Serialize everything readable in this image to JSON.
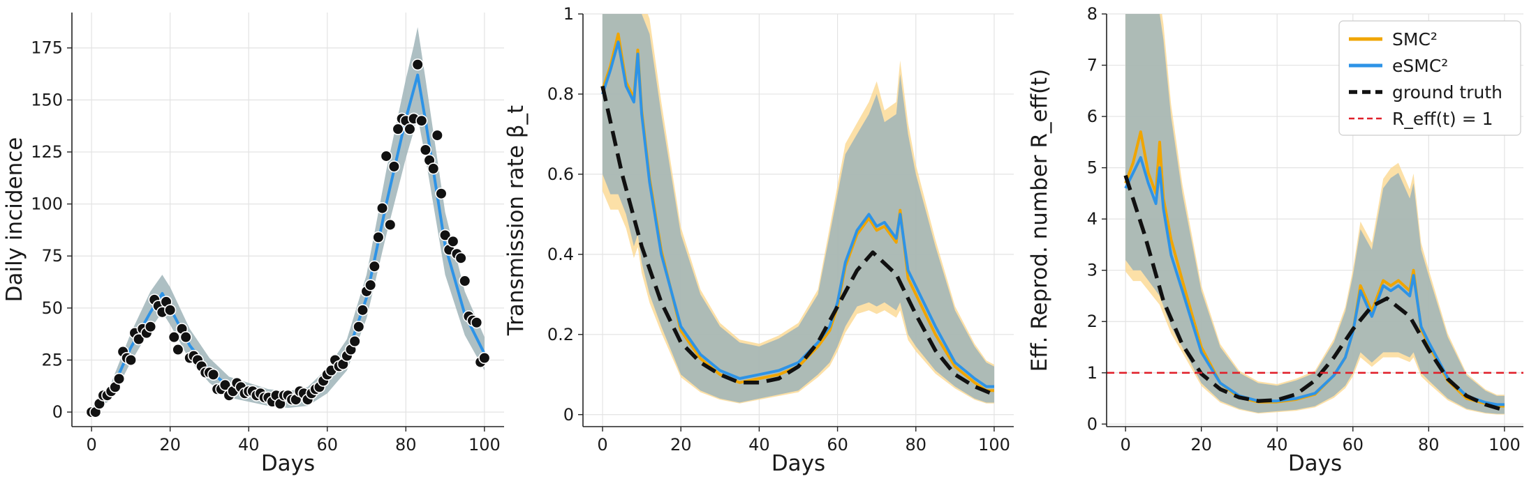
{
  "colors": {
    "smc2": "#f0a500",
    "esmc2": "#2e93e6",
    "smc2_band": "#fbd58a",
    "esmc2_band": "#9fb4b9",
    "ground_truth": "#111111",
    "reff_line": "#e0202a",
    "marker_fill": "#111111",
    "marker_edge": "#ffffff"
  },
  "legend": {
    "smc2": "SMC²",
    "esmc2": "eSMC²",
    "ground_truth": "ground truth",
    "reff_one": "R_eff(t) = 1"
  },
  "chart_data": [
    {
      "type": "line",
      "panel": "incidence",
      "xlabel": "Days",
      "ylabel": "Daily incidence",
      "xlim": [
        -5,
        105
      ],
      "ylim": [
        -7,
        192
      ],
      "xticks": [
        0,
        20,
        40,
        60,
        80,
        100
      ],
      "yticks": [
        0,
        25,
        50,
        75,
        100,
        125,
        150,
        175
      ],
      "grid": true,
      "observed_days": [
        0,
        1,
        2,
        3,
        4,
        5,
        6,
        7,
        8,
        9,
        10,
        11,
        12,
        13,
        14,
        15,
        16,
        17,
        18,
        19,
        20,
        21,
        22,
        23,
        24,
        25,
        26,
        27,
        28,
        29,
        30,
        31,
        32,
        33,
        34,
        35,
        36,
        37,
        38,
        39,
        40,
        41,
        42,
        43,
        44,
        45,
        46,
        47,
        48,
        49,
        50,
        51,
        52,
        53,
        54,
        55,
        56,
        57,
        58,
        59,
        60,
        61,
        62,
        63,
        64,
        65,
        66,
        67,
        68,
        69,
        70,
        71,
        72,
        73,
        74,
        75,
        76,
        77,
        78,
        79,
        80,
        81,
        82,
        83,
        84,
        85,
        86,
        87,
        88,
        89,
        90,
        91,
        92,
        93,
        94,
        95,
        96,
        97,
        98,
        99,
        100
      ],
      "observed_counts": [
        0,
        0,
        4,
        8,
        8,
        10,
        12,
        16,
        29,
        26,
        25,
        38,
        35,
        40,
        38,
        41,
        54,
        51,
        48,
        53,
        49,
        36,
        30,
        40,
        36,
        26,
        27,
        25,
        22,
        19,
        19,
        18,
        11,
        11,
        13,
        8,
        10,
        14,
        12,
        9,
        10,
        10,
        8,
        9,
        7,
        7,
        5,
        8,
        4,
        8,
        8,
        6,
        6,
        10,
        9,
        6,
        9,
        11,
        12,
        15,
        18,
        20,
        25,
        22,
        23,
        27,
        30,
        34,
        41,
        49,
        58,
        61,
        70,
        84,
        98,
        123,
        90,
        118,
        136,
        141,
        140,
        136,
        141,
        167,
        140,
        126,
        121,
        117,
        133,
        105,
        85,
        78,
        82,
        76,
        74,
        63,
        46,
        44,
        43,
        24,
        26
      ],
      "estimate_days": [
        0,
        5,
        10,
        15,
        18,
        20,
        25,
        30,
        35,
        40,
        45,
        50,
        55,
        60,
        65,
        70,
        75,
        80,
        82,
        83,
        85,
        90,
        95,
        100
      ],
      "esmc2_mean": [
        0,
        10,
        31,
        48,
        57,
        50,
        32,
        20,
        12,
        9,
        7,
        6,
        7,
        15,
        27,
        55,
        100,
        141,
        155,
        162,
        140,
        80,
        47,
        28
      ],
      "band_lower": [
        0,
        6,
        24,
        40,
        48,
        42,
        25,
        14,
        7,
        5,
        3,
        2,
        3,
        9,
        20,
        45,
        85,
        122,
        135,
        142,
        122,
        66,
        37,
        20
      ],
      "band_upper": [
        2,
        14,
        38,
        58,
        66,
        60,
        40,
        26,
        17,
        14,
        11,
        10,
        12,
        21,
        35,
        66,
        116,
        160,
        176,
        185,
        160,
        96,
        58,
        36
      ]
    },
    {
      "type": "line",
      "panel": "transmission",
      "xlabel": "Days",
      "ylabel": "Transmission rate β_t",
      "xlim": [
        -5,
        105
      ],
      "ylim": [
        -0.03,
        1.0
      ],
      "xticks": [
        0,
        20,
        40,
        60,
        80,
        100
      ],
      "yticks": [
        0.0,
        0.2,
        0.4,
        0.6,
        0.8,
        1.0
      ],
      "grid": true,
      "ground_truth_days": [
        0,
        5,
        10,
        15,
        20,
        25,
        30,
        35,
        40,
        45,
        50,
        55,
        60,
        65,
        69,
        75,
        80,
        85,
        90,
        95,
        100
      ],
      "ground_truth": [
        0.82,
        0.6,
        0.42,
        0.28,
        0.18,
        0.13,
        0.1,
        0.08,
        0.08,
        0.09,
        0.12,
        0.18,
        0.27,
        0.36,
        0.405,
        0.35,
        0.25,
        0.16,
        0.1,
        0.07,
        0.05
      ],
      "estimate_days": [
        0,
        2,
        4,
        6,
        8,
        9,
        10,
        12,
        15,
        20,
        25,
        30,
        35,
        40,
        45,
        50,
        55,
        58,
        60,
        62,
        65,
        68,
        70,
        72,
        75,
        76,
        78,
        80,
        85,
        90,
        95,
        98,
        100
      ],
      "esmc2_mean": [
        0.8,
        0.86,
        0.93,
        0.82,
        0.78,
        0.9,
        0.75,
        0.58,
        0.4,
        0.22,
        0.15,
        0.11,
        0.09,
        0.1,
        0.11,
        0.13,
        0.18,
        0.22,
        0.28,
        0.38,
        0.46,
        0.5,
        0.47,
        0.48,
        0.44,
        0.5,
        0.36,
        0.32,
        0.22,
        0.13,
        0.09,
        0.07,
        0.07
      ],
      "smc2_mean": [
        0.81,
        0.87,
        0.95,
        0.83,
        0.79,
        0.91,
        0.76,
        0.59,
        0.41,
        0.21,
        0.14,
        0.1,
        0.08,
        0.09,
        0.1,
        0.12,
        0.17,
        0.21,
        0.27,
        0.37,
        0.45,
        0.49,
        0.46,
        0.47,
        0.43,
        0.51,
        0.34,
        0.3,
        0.2,
        0.12,
        0.08,
        0.06,
        0.06
      ],
      "band_lower": [
        0.6,
        0.55,
        0.55,
        0.5,
        0.42,
        0.45,
        0.38,
        0.3,
        0.22,
        0.1,
        0.06,
        0.04,
        0.03,
        0.04,
        0.05,
        0.06,
        0.1,
        0.13,
        0.17,
        0.22,
        0.27,
        0.28,
        0.27,
        0.28,
        0.26,
        0.28,
        0.2,
        0.17,
        0.11,
        0.07,
        0.04,
        0.03,
        0.03
      ],
      "band_upper": [
        1.0,
        1.0,
        1.0,
        1.0,
        1.0,
        1.0,
        1.0,
        0.95,
        0.75,
        0.45,
        0.3,
        0.22,
        0.18,
        0.17,
        0.19,
        0.22,
        0.3,
        0.45,
        0.55,
        0.65,
        0.7,
        0.75,
        0.8,
        0.73,
        0.75,
        0.85,
        0.7,
        0.6,
        0.42,
        0.26,
        0.17,
        0.13,
        0.12
      ]
    },
    {
      "type": "line",
      "panel": "reproduction",
      "xlabel": "Days",
      "ylabel": "Eff. Reprod. number R_eff(t)",
      "xlim": [
        -5,
        105
      ],
      "ylim": [
        -0.05,
        8.0
      ],
      "xticks": [
        0,
        20,
        40,
        60,
        80,
        100
      ],
      "yticks": [
        0,
        1,
        2,
        3,
        4,
        5,
        6,
        7,
        8
      ],
      "grid": true,
      "hline": 1,
      "ground_truth_days": [
        0,
        5,
        10,
        15,
        20,
        25,
        30,
        35,
        40,
        45,
        50,
        55,
        60,
        65,
        69,
        75,
        80,
        85,
        90,
        95,
        100
      ],
      "ground_truth": [
        4.85,
        3.7,
        2.4,
        1.55,
        0.98,
        0.68,
        0.52,
        0.45,
        0.47,
        0.58,
        0.85,
        1.3,
        1.85,
        2.3,
        2.45,
        2.1,
        1.45,
        0.88,
        0.55,
        0.38,
        0.27
      ],
      "estimate_days": [
        0,
        2,
        4,
        6,
        8,
        9,
        10,
        12,
        15,
        20,
        25,
        30,
        35,
        40,
        45,
        50,
        55,
        58,
        60,
        62,
        65,
        68,
        70,
        72,
        75,
        76,
        78,
        80,
        85,
        90,
        95,
        98,
        100
      ],
      "esmc2_mean": [
        4.6,
        4.9,
        5.2,
        4.7,
        4.3,
        5.0,
        4.2,
        3.3,
        2.6,
        1.4,
        0.8,
        0.55,
        0.45,
        0.45,
        0.5,
        0.6,
        0.95,
        1.3,
        1.8,
        2.6,
        2.1,
        2.7,
        2.6,
        2.7,
        2.5,
        2.9,
        1.9,
        1.6,
        0.9,
        0.55,
        0.42,
        0.38,
        0.38
      ],
      "smc2_mean": [
        4.7,
        5.1,
        5.7,
        4.9,
        4.5,
        5.5,
        4.4,
        3.6,
        2.8,
        1.5,
        0.8,
        0.52,
        0.43,
        0.43,
        0.48,
        0.58,
        0.95,
        1.3,
        1.8,
        2.7,
        2.2,
        2.8,
        2.7,
        2.8,
        2.6,
        3.0,
        1.85,
        1.55,
        0.85,
        0.5,
        0.4,
        0.35,
        0.35
      ],
      "band_lower": [
        3.2,
        3.0,
        3.0,
        2.8,
        2.6,
        2.5,
        2.3,
        1.9,
        1.5,
        0.8,
        0.45,
        0.3,
        0.22,
        0.25,
        0.28,
        0.35,
        0.55,
        0.75,
        1.0,
        1.4,
        1.2,
        1.4,
        1.4,
        1.4,
        1.3,
        1.4,
        1.0,
        0.85,
        0.5,
        0.3,
        0.22,
        0.2,
        0.2
      ],
      "band_upper": [
        8.0,
        8.0,
        8.0,
        8.0,
        8.0,
        8.0,
        7.5,
        6.0,
        4.5,
        2.6,
        1.5,
        1.0,
        0.8,
        0.75,
        0.85,
        1.0,
        1.6,
        2.2,
        2.9,
        3.8,
        3.4,
        4.6,
        4.8,
        4.9,
        4.4,
        4.7,
        3.4,
        2.9,
        1.7,
        0.95,
        0.65,
        0.55,
        0.55
      ]
    }
  ]
}
